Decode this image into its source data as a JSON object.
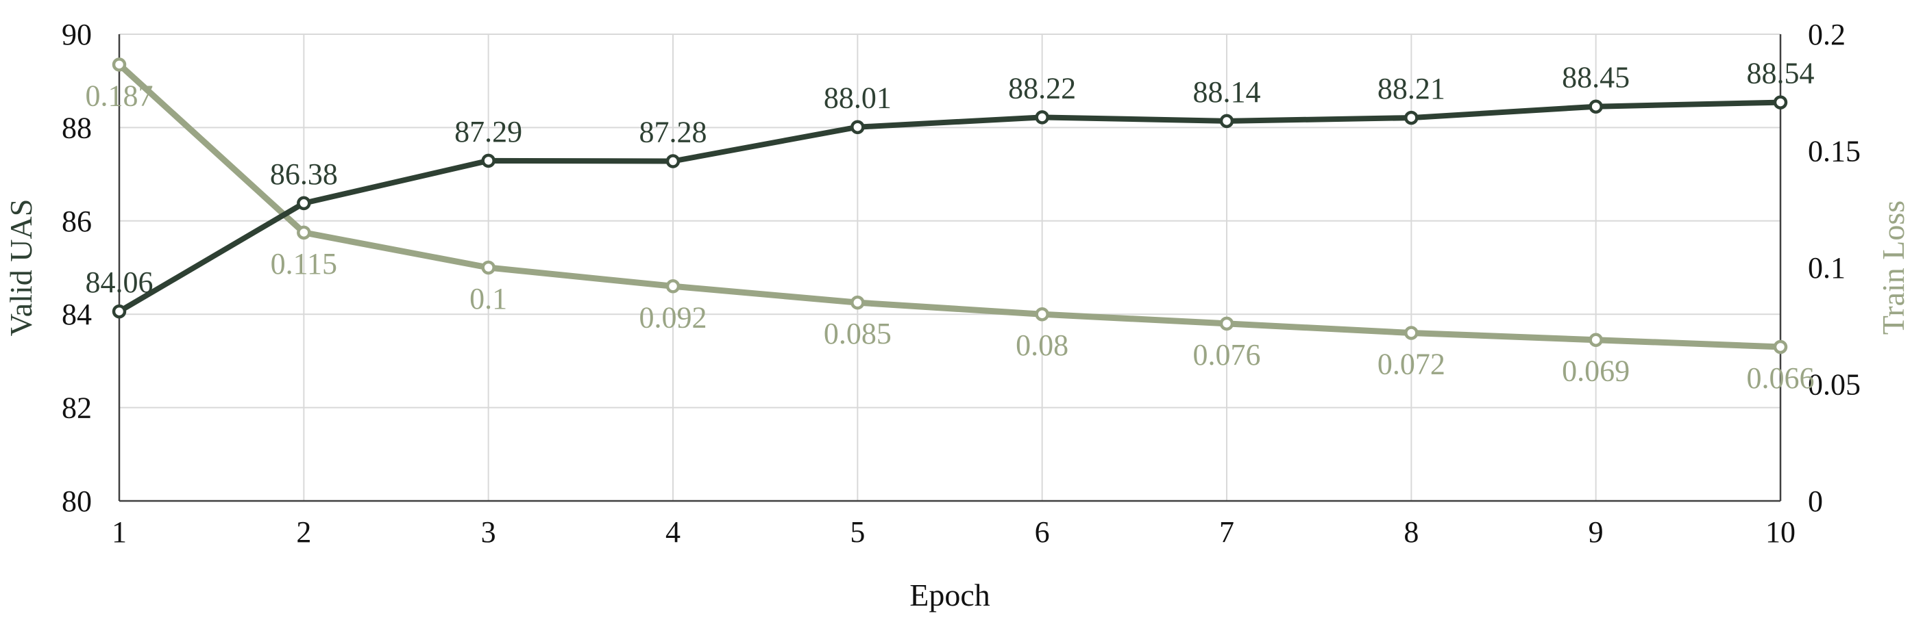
{
  "chart_data": {
    "type": "line",
    "title": "",
    "xlabel": "Epoch",
    "ylabel": "Valid UAS",
    "y2label": "Train Loss",
    "x": [
      1,
      2,
      3,
      4,
      5,
      6,
      7,
      8,
      9,
      10
    ],
    "ylim": [
      80,
      90
    ],
    "y2lim": [
      0,
      0.2
    ],
    "y_ticks": [
      80,
      82,
      84,
      86,
      88,
      90
    ],
    "y2_ticks": [
      "0",
      "0.05",
      "0.1",
      "0.15",
      "0.2"
    ],
    "grid": true,
    "legend": "none",
    "series": [
      {
        "axis": "left",
        "color": "#2e4033",
        "values": [
          84.06,
          86.38,
          87.29,
          87.28,
          88.01,
          88.22,
          88.14,
          88.21,
          88.45,
          88.54
        ],
        "labels": [
          "84.06",
          "86.38",
          "87.29",
          "87.28",
          "88.01",
          "88.22",
          "88.14",
          "88.21",
          "88.45",
          "88.54"
        ]
      },
      {
        "axis": "right",
        "color": "#9aa585",
        "values": [
          0.187,
          0.115,
          0.1,
          0.092,
          0.085,
          0.08,
          0.076,
          0.072,
          0.069,
          0.066
        ],
        "labels": [
          "0.187",
          "0.115",
          "0.1",
          "0.092",
          "0.085",
          "0.08",
          "0.076",
          "0.072",
          "0.069",
          "0.066"
        ]
      }
    ]
  }
}
